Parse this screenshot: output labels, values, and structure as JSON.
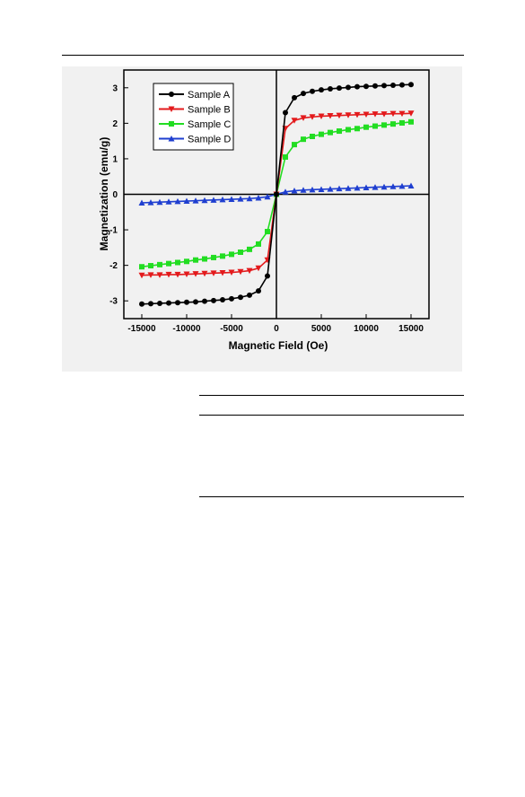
{
  "page": {
    "background": "#ffffff"
  },
  "chart_data": {
    "type": "line",
    "title": "",
    "xlabel": "Magnetic Field (Oe)",
    "ylabel": "Magnetization (emu/g)",
    "xlim": [
      -17000,
      17000
    ],
    "ylim": [
      -3.5,
      3.5
    ],
    "xticks": [
      -15000,
      -10000,
      -5000,
      0,
      5000,
      10000,
      15000
    ],
    "yticks": [
      -3,
      -2,
      -1,
      0,
      1,
      2,
      3
    ],
    "grid": false,
    "legend_position": "top-left",
    "x": [
      -15000,
      -14000,
      -13000,
      -12000,
      -11000,
      -10000,
      -9000,
      -8000,
      -7000,
      -6000,
      -5000,
      -4000,
      -3000,
      -2000,
      -1000,
      0,
      1000,
      2000,
      3000,
      4000,
      5000,
      6000,
      7000,
      8000,
      9000,
      10000,
      11000,
      12000,
      13000,
      14000,
      15000
    ],
    "series": [
      {
        "name": "Sample A",
        "color": "#000000",
        "marker": "circle",
        "values": [
          -3.09,
          -3.08,
          -3.07,
          -3.06,
          -3.05,
          -3.04,
          -3.03,
          -3.01,
          -2.99,
          -2.97,
          -2.94,
          -2.9,
          -2.84,
          -2.72,
          -2.3,
          0.0,
          2.3,
          2.72,
          2.84,
          2.9,
          2.94,
          2.97,
          2.99,
          3.01,
          3.03,
          3.04,
          3.05,
          3.06,
          3.07,
          3.08,
          3.09
        ]
      },
      {
        "name": "Sample B",
        "color": "#e31a1c",
        "marker": "triangle-down",
        "values": [
          -2.28,
          -2.27,
          -2.27,
          -2.26,
          -2.26,
          -2.25,
          -2.24,
          -2.23,
          -2.22,
          -2.21,
          -2.2,
          -2.18,
          -2.15,
          -2.08,
          -1.85,
          0.0,
          1.85,
          2.08,
          2.15,
          2.18,
          2.2,
          2.21,
          2.22,
          2.23,
          2.24,
          2.25,
          2.26,
          2.26,
          2.27,
          2.27,
          2.28
        ]
      },
      {
        "name": "Sample C",
        "color": "#22dd22",
        "marker": "square",
        "values": [
          -2.04,
          -2.01,
          -1.98,
          -1.95,
          -1.92,
          -1.89,
          -1.85,
          -1.82,
          -1.78,
          -1.74,
          -1.69,
          -1.63,
          -1.55,
          -1.4,
          -1.05,
          0.0,
          1.05,
          1.4,
          1.55,
          1.63,
          1.69,
          1.74,
          1.78,
          1.82,
          1.85,
          1.89,
          1.92,
          1.95,
          1.98,
          2.01,
          2.04
        ]
      },
      {
        "name": "Sample D",
        "color": "#1f3fd0",
        "marker": "triangle-up",
        "values": [
          -0.24,
          -0.23,
          -0.22,
          -0.21,
          -0.2,
          -0.19,
          -0.18,
          -0.17,
          -0.16,
          -0.15,
          -0.14,
          -0.13,
          -0.12,
          -0.1,
          -0.07,
          0.0,
          0.07,
          0.1,
          0.12,
          0.13,
          0.14,
          0.15,
          0.16,
          0.17,
          0.18,
          0.19,
          0.2,
          0.21,
          0.22,
          0.23,
          0.24
        ]
      }
    ]
  }
}
